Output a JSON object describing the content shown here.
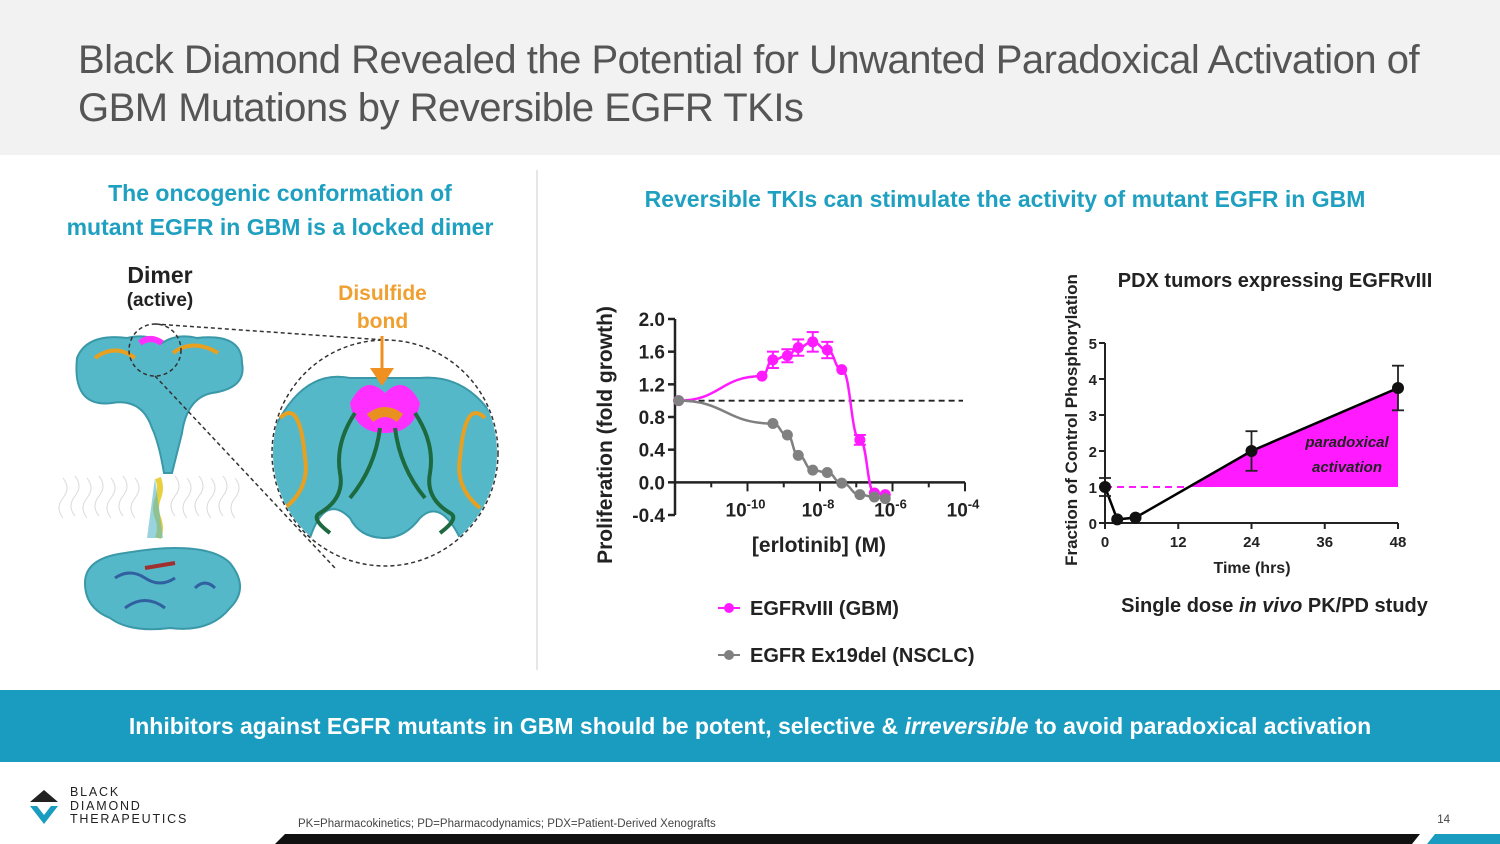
{
  "slide": {
    "title": "Black Diamond Revealed the Potential for Unwanted Paradoxical Activation of GBM Mutations by Reversible EGFR TKIs",
    "page_number": "14",
    "footnote": "PK=Pharmacokinetics; PD=Pharmacodynamics; PDX=Patient-Derived Xenografts"
  },
  "left_panel": {
    "heading_line1": "The oncogenic conformation of",
    "heading_line2": "mutant EGFR in GBM is a locked dimer",
    "dimer_label": "Dimer",
    "dimer_sublabel": "(active)",
    "disulfide_line1": "Disulfide",
    "disulfide_line2": "bond"
  },
  "right_panel": {
    "heading": "Reversible TKIs can stimulate the activity of mutant EGFR in GBM",
    "pdx_label": "PDX tumors expressing EGFRvIII",
    "study_prefix": "Single dose ",
    "study_italic": "in vivo",
    "study_suffix": " PK/PD study"
  },
  "banner": {
    "prefix": "Inhibitors against EGFR mutants in GBM should be potent, selective & ",
    "italic": "irreversible",
    "suffix": " to avoid paradoxical activation"
  },
  "logo": {
    "line1": "BLACK",
    "line2": "DIAMOND",
    "line3": "THERAPEUTICS"
  },
  "colors": {
    "accent": "#1a9cc0",
    "heading": "#1fa0c0",
    "magenta": "#ff1aff",
    "gray": "#808080",
    "orange": "#f0a030",
    "title_band": "#f2f2f2"
  },
  "chart_data": [
    {
      "type": "line",
      "title": "",
      "xlabel": "[erlotinib]  (M)",
      "ylabel": "Proliferation (fold growth)",
      "x_scale": "log10",
      "xlim_log10": [
        -12,
        -4
      ],
      "ylim": [
        -0.4,
        2.0
      ],
      "yticks": [
        -0.4,
        0.0,
        0.4,
        0.8,
        1.2,
        1.6,
        2.0
      ],
      "ytick_labels": [
        "-0.4",
        "0.0",
        "0.4",
        "0.8",
        "1.2",
        "1.6",
        "2.0"
      ],
      "xtick_exponents": [
        "-10",
        "-8",
        "-6",
        "-4"
      ],
      "xtick_base": "10",
      "reference_line_y": 1.0,
      "legend_position": "bottom",
      "series": [
        {
          "name": "EGFRvIII (GBM)",
          "color": "#ff1aff",
          "log10_x": [
            -11.9,
            -9.6,
            -9.3,
            -8.9,
            -8.6,
            -8.2,
            -7.8,
            -7.4,
            -6.9,
            -6.5,
            -6.2
          ],
          "values": [
            1.0,
            1.3,
            1.5,
            1.55,
            1.65,
            1.72,
            1.62,
            1.38,
            0.52,
            -0.13,
            -0.15
          ],
          "errors": [
            0,
            0,
            0.1,
            0.08,
            0.1,
            0.12,
            0.1,
            0,
            0.06,
            0,
            0
          ]
        },
        {
          "name": "EGFR Ex19del (NSCLC)",
          "color": "#808080",
          "log10_x": [
            -11.9,
            -9.3,
            -8.9,
            -8.6,
            -8.2,
            -7.8,
            -7.4,
            -6.9,
            -6.5,
            -6.2
          ],
          "values": [
            1.0,
            0.72,
            0.58,
            0.33,
            0.15,
            0.12,
            -0.01,
            -0.15,
            -0.18,
            -0.2
          ],
          "errors": [
            0,
            0,
            0,
            0,
            0,
            0,
            0,
            0,
            0,
            0
          ]
        }
      ]
    },
    {
      "type": "line",
      "title": "PDX tumors expressing EGFRvIII",
      "xlabel": "Time (hrs)",
      "ylabel": "Fraction of Control Phosphorylation",
      "xlim": [
        0,
        48
      ],
      "ylim": [
        0,
        5
      ],
      "xticks": [
        0,
        12,
        24,
        36,
        48
      ],
      "yticks": [
        0,
        1,
        2,
        3,
        4,
        5
      ],
      "reference_line_y": 1,
      "annotation_line1": "paradoxical",
      "annotation_line2": "activation",
      "series": [
        {
          "name": "EGFRvIII PDX",
          "color": "#000000",
          "x": [
            0,
            2,
            5,
            24,
            48
          ],
          "values": [
            1.0,
            0.1,
            0.15,
            2.0,
            3.75
          ],
          "errors": [
            0.25,
            0,
            0,
            0.55,
            0.62
          ]
        }
      ],
      "shaded_region": {
        "label": "paradoxical activation",
        "color": "#ff1aff",
        "above_y": 1
      }
    }
  ]
}
